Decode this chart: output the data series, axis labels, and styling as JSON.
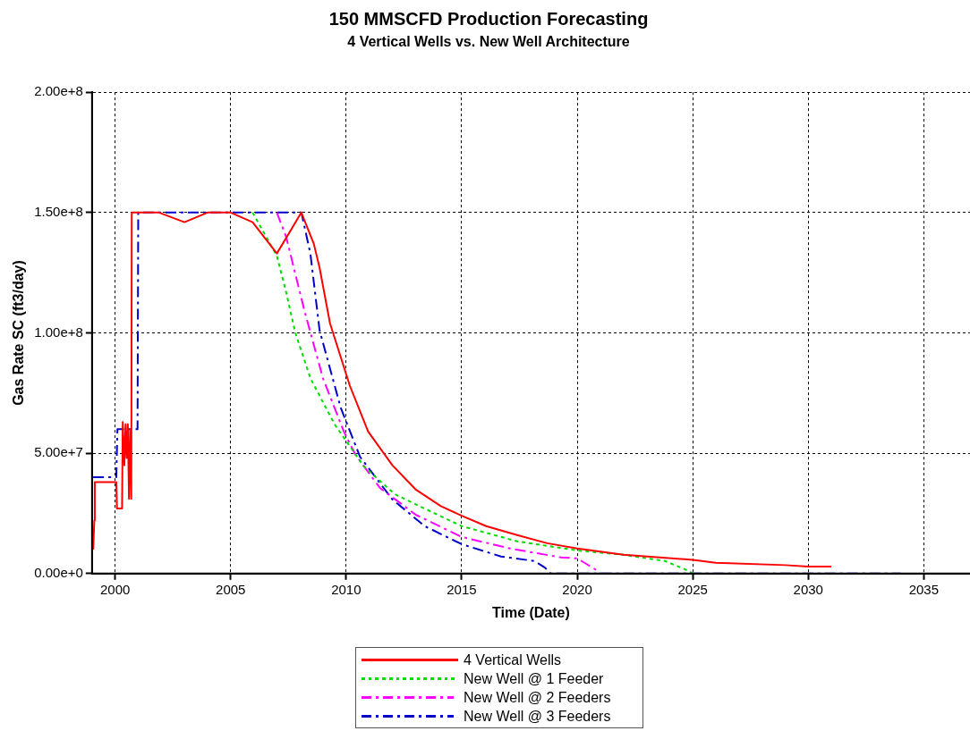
{
  "chart_data": {
    "type": "line",
    "title": "150 MMSCFD Production Forecasting",
    "subtitle": "4 Vertical Wells vs. New Well Architecture",
    "xlabel": "Time (Date)",
    "ylabel": "Gas Rate SC (ft3/day)",
    "xlim": [
      1999,
      2037
    ],
    "xticks": [
      2000,
      2005,
      2010,
      2015,
      2020,
      2025,
      2030,
      2035
    ],
    "ylim": [
      0,
      200000000
    ],
    "yticks": [
      {
        "value": 0,
        "label": "0.00e+0"
      },
      {
        "value": 50000000,
        "label": "5.00e+7"
      },
      {
        "value": 100000000,
        "label": "1.00e+8"
      },
      {
        "value": 150000000,
        "label": "1.50e+8"
      },
      {
        "value": 200000000,
        "label": "2.00e+8"
      }
    ],
    "grid": true,
    "legend": "bottom",
    "marker": "none",
    "series": [
      {
        "name": "4 Vertical Wells",
        "color": "#ff0000",
        "line_style": "solid",
        "x": [
          1999.05,
          1999.1,
          1999.12,
          2000.05,
          2000.08,
          2000.3,
          2000.33,
          2000.4,
          2000.45,
          2000.5,
          2000.55,
          2000.6,
          2000.65,
          2000.7,
          2000.72,
          2001.9,
          2003.0,
          2004.0,
          2005.0,
          2005.95,
          2007.0,
          2008.06,
          2008.6,
          2008.85,
          2009.3,
          2010.16,
          2010.95,
          2012.0,
          2013.0,
          2014.1,
          2015.0,
          2016.06,
          2017.4,
          2018.7,
          2020.0,
          2022.0,
          2025.0,
          2026.0,
          2029.0,
          2030.0,
          2031.0
        ],
        "values": [
          10000000,
          22000000,
          38000000,
          38000000,
          27000000,
          27000000,
          63000000,
          45000000,
          62000000,
          48000000,
          62000000,
          31000000,
          60000000,
          31000000,
          150000000,
          150000000,
          146000000,
          150000000,
          150000000,
          146000000,
          133000000,
          150000000,
          137000000,
          127000000,
          104000000,
          78000000,
          59000000,
          45000000,
          35000000,
          28000000,
          24000000,
          19700000,
          16000000,
          12600000,
          10400000,
          7800000,
          5700000,
          4500000,
          3500000,
          2900000,
          2900000
        ]
      },
      {
        "name": "New Well @ 1 Feeder",
        "color": "#00dd00",
        "line_style": "dotted",
        "x": [
          2005.95,
          2007.0,
          2007.4,
          2007.8,
          2008.46,
          2009.5,
          2010.55,
          2010.8,
          2012.1,
          2013.7,
          2015.0,
          2017.4,
          2020.0,
          2022.0,
          2023.8,
          2024.85,
          2025.0
        ],
        "values": [
          150000000,
          132000000,
          117000000,
          100000000,
          81000000,
          62000000,
          47500000,
          44200000,
          33000000,
          25600000,
          19700000,
          13400000,
          9600000,
          7800000,
          5200000,
          1000000,
          0
        ]
      },
      {
        "name": "New Well @ 2 Feeders",
        "color": "#ff00ff",
        "line_style": "dashed",
        "x": [
          2007.0,
          2007.4,
          2008.2,
          2009.0,
          2009.9,
          2010.4,
          2011.46,
          2013.0,
          2015.0,
          2017.1,
          2019.3,
          2020.0,
          2020.8,
          2021.0
        ],
        "values": [
          150000000,
          140000000,
          109000000,
          81000000,
          59000000,
          49400000,
          35600000,
          24500000,
          15200000,
          10400000,
          6700000,
          6300000,
          1600000,
          0
        ]
      },
      {
        "name": "New Well @ 3 Feeders",
        "color": "#0000cc",
        "line_style": "dashed",
        "x": [
          1999.05,
          2000.05,
          2000.1,
          2000.97,
          2001.0,
          2008.06,
          2008.45,
          2008.85,
          2009.76,
          2010.6,
          2012.0,
          2013.4,
          2015.0,
          2016.7,
          2018.15,
          2018.6,
          2018.85,
          2034.0
        ],
        "values": [
          40000000,
          40000000,
          60000000,
          60000000,
          150000000,
          150000000,
          133000000,
          101000000,
          69000000,
          48500000,
          30800000,
          19700000,
          12200000,
          7100000,
          5200000,
          2500000,
          0,
          0
        ]
      }
    ]
  }
}
